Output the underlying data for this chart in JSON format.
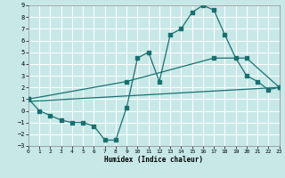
{
  "xlabel": "Humidex (Indice chaleur)",
  "background_color": "#c8e8e8",
  "grid_color": "#ffffff",
  "line_color": "#1a7070",
  "xlim": [
    0,
    23
  ],
  "ylim": [
    -3,
    9
  ],
  "xticks": [
    0,
    1,
    2,
    3,
    4,
    5,
    6,
    7,
    8,
    9,
    10,
    11,
    12,
    13,
    14,
    15,
    16,
    17,
    18,
    19,
    20,
    21,
    22,
    23
  ],
  "yticks": [
    -3,
    -2,
    -1,
    0,
    1,
    2,
    3,
    4,
    5,
    6,
    7,
    8,
    9
  ],
  "curve_x": [
    0,
    1,
    2,
    3,
    4,
    5,
    6,
    7,
    8,
    9,
    10,
    11,
    12,
    13,
    14,
    15,
    16,
    17,
    18,
    19,
    20,
    21,
    22,
    23
  ],
  "curve_y": [
    1.0,
    0.0,
    -0.4,
    -0.8,
    -1.0,
    -1.0,
    -1.3,
    -2.5,
    -2.5,
    0.3,
    4.5,
    5.0,
    2.5,
    6.5,
    7.0,
    8.4,
    9.0,
    8.6,
    6.5,
    4.5,
    3.0,
    2.5,
    1.8,
    2.0
  ],
  "upper_line_x": [
    0,
    9,
    17,
    20,
    23
  ],
  "upper_line_y": [
    1.0,
    2.5,
    4.5,
    4.5,
    2.0
  ],
  "lower_line_x": [
    0,
    23
  ],
  "lower_line_y": [
    0.8,
    2.0
  ]
}
